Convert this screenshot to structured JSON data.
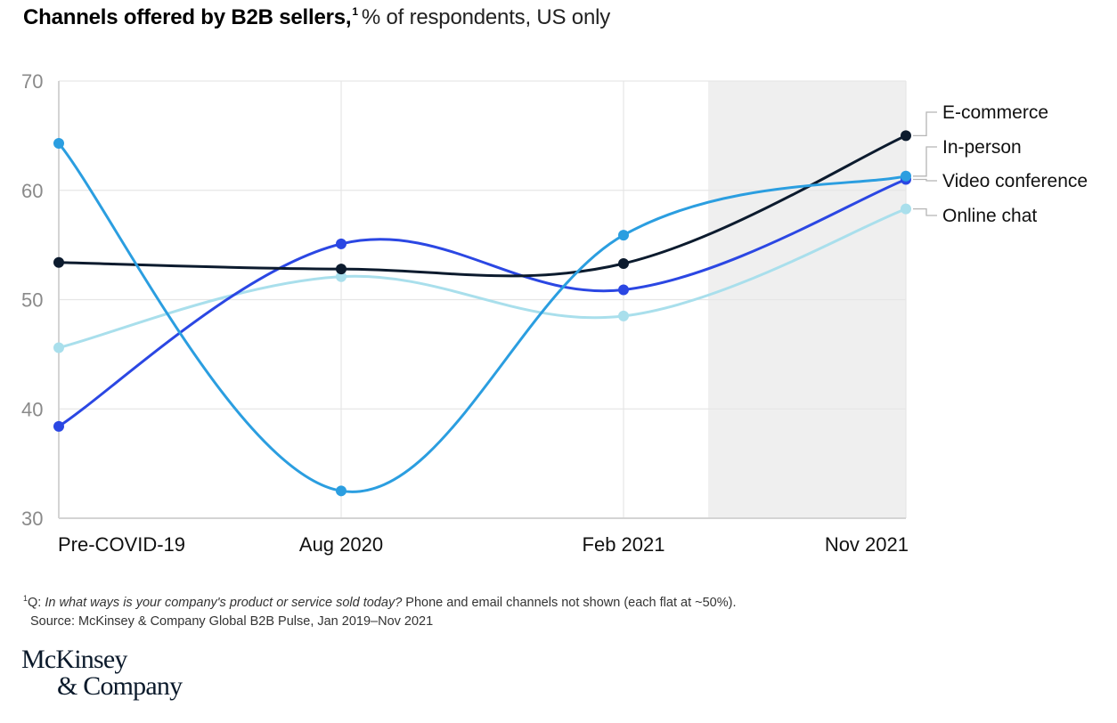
{
  "title": {
    "bold": "Channels offered by B2B sellers,",
    "footnote_marker": "1",
    "subtitle": "% of respondents, US only"
  },
  "footnote": {
    "marker": "1",
    "prefix": "Q: ",
    "question": "In what ways is your company's product or service sold today?",
    "note": " Phone and email channels not shown (each flat at ~50%).",
    "source": "Source: McKinsey & Company Global B2B Pulse, Jan 2019–Nov 2021"
  },
  "logo": {
    "line1": "McKinsey",
    "line2": "& Company"
  },
  "chart_data": {
    "type": "line",
    "title": "Channels offered by B2B sellers, % of respondents, US only",
    "xlabel": "",
    "ylabel": "% of respondents",
    "categories": [
      "Pre-COVID-19",
      "Aug 2020",
      "Feb 2021",
      "Nov 2021"
    ],
    "x_positions": [
      0,
      5,
      10,
      15
    ],
    "ylim": [
      30,
      70
    ],
    "yticks": [
      30,
      40,
      50,
      60,
      70
    ],
    "grid": true,
    "shaded_region": {
      "from_x": 11.5,
      "to_x": 15,
      "color": "#efefef"
    },
    "legend_placement": "right",
    "series": [
      {
        "name": "E-commerce",
        "color": "#0c1b2e",
        "values": [
          53.4,
          52.8,
          53.3,
          65.0
        ]
      },
      {
        "name": "In-person",
        "color": "#2b9ee0",
        "values": [
          64.3,
          32.5,
          55.9,
          61.3
        ]
      },
      {
        "name": "Video conference",
        "color": "#2b47e3",
        "values": [
          38.4,
          55.1,
          50.9,
          61.0
        ]
      },
      {
        "name": "Online chat",
        "color": "#a9dfec",
        "values": [
          45.6,
          52.1,
          48.5,
          58.3
        ]
      }
    ]
  }
}
